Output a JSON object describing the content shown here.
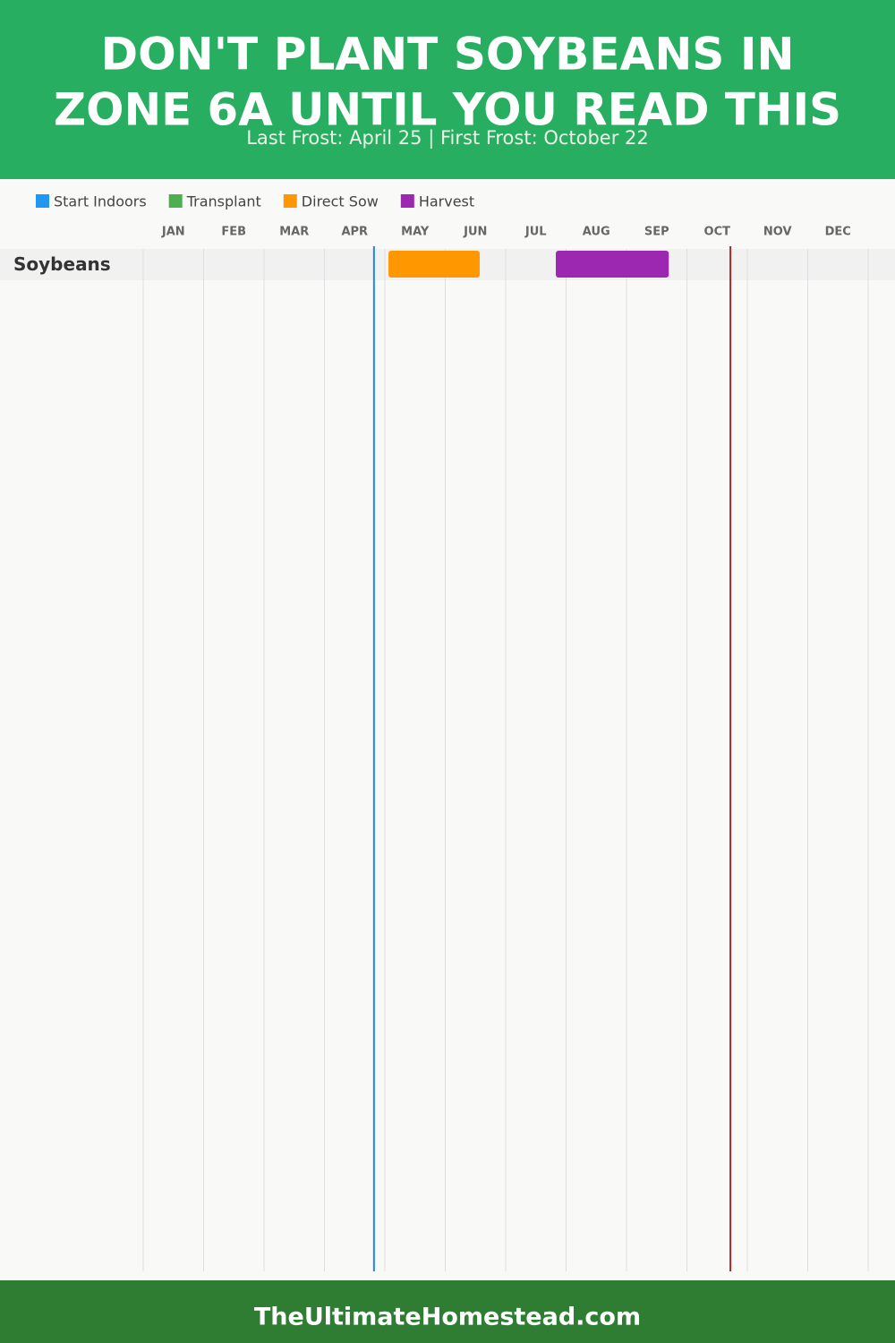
{
  "chart_data": {
    "type": "timeline",
    "title_lines": [
      "DON'T PLANT SOYBEANS IN",
      "ZONE 6A UNTIL YOU READ THIS"
    ],
    "subtitle": "Last Frost: April 25 | First Frost: October 22",
    "footer": "TheUltimateHomestead.com",
    "categories": [
      "JAN",
      "FEB",
      "MAR",
      "APR",
      "MAY",
      "JUN",
      "JUL",
      "AUG",
      "SEP",
      "OCT",
      "NOV",
      "DEC"
    ],
    "xlim": [
      0,
      12
    ],
    "xticks": [
      0,
      1,
      2,
      3,
      4,
      5,
      6,
      7,
      8,
      9,
      10,
      11,
      12
    ],
    "grid": true,
    "rows": [
      "Soybeans"
    ],
    "series": [
      {
        "name": "Start Indoors",
        "color": "#2196f3",
        "start": [
          null
        ],
        "end": [
          null
        ]
      },
      {
        "name": "Transplant",
        "color": "#4caf50",
        "start": [
          null
        ],
        "end": [
          null
        ]
      },
      {
        "name": "Direct Sow",
        "color": "#ff9800",
        "start": [
          4.06
        ],
        "end": [
          5.57
        ]
      },
      {
        "name": "Harvest",
        "color": "#9c27b0",
        "start": [
          6.83
        ],
        "end": [
          8.7
        ]
      }
    ],
    "frost_lines": [
      {
        "value": 3.82,
        "color": "#1e88e5"
      },
      {
        "value": 9.72,
        "color": "#a52a2a"
      }
    ]
  }
}
